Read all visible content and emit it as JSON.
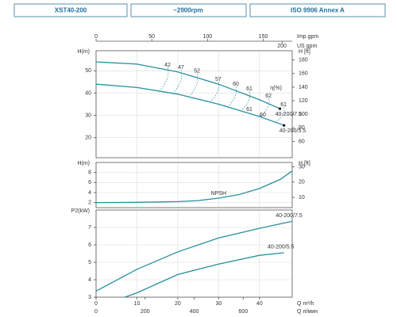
{
  "header": [
    "XST40-200",
    "~2900rpm",
    "ISO 9906   Annex A"
  ],
  "chart_data": [
    {
      "type": "line",
      "ylabel": "H(m)",
      "y2label": "H [ft]",
      "xlim": [
        0,
        48
      ],
      "ylim": [
        11,
        59
      ],
      "yticks": [
        20,
        30,
        40,
        50
      ],
      "y2lim": [
        36.1,
        193.6
      ],
      "y2ticks": [
        60,
        80,
        100,
        120,
        140,
        160,
        180
      ],
      "top_axes": [
        {
          "label": "Imp gpm",
          "xlim": [
            0,
            176
          ],
          "xticks": [
            0,
            50,
            100,
            150
          ]
        },
        {
          "label": "US gpm",
          "xlim": [
            0,
            211
          ],
          "xticks": [
            200
          ]
        }
      ],
      "series": [
        {
          "name": "40-200/7.5",
          "color": "#2a8fa0",
          "x": [
            0,
            10,
            20,
            30,
            40,
            45
          ],
          "values": [
            54,
            53,
            49.5,
            44,
            37,
            33
          ]
        },
        {
          "name": "40-200/5.5",
          "color": "#2a8fa0",
          "x": [
            0,
            10,
            20,
            30,
            40,
            46
          ],
          "values": [
            44,
            42.5,
            39.5,
            35,
            29.5,
            25.5
          ]
        }
      ],
      "efficiency": {
        "label": "η(%)",
        "label_x": 42.6,
        "label_y": 42.2,
        "x": [
          17.5,
          20.8,
          24.7,
          29.9,
          34.2,
          37.5,
          42.2,
          45.9,
          37.5,
          40.8
        ],
        "y": [
          52.6,
          51.5,
          49.8,
          46.2,
          44.1,
          41.9,
          38.7,
          34.8,
          32.7,
          30.2
        ],
        "values": [
          42,
          47,
          52,
          57,
          60,
          61,
          62,
          61,
          61,
          60
        ]
      }
    },
    {
      "type": "line",
      "ylabel": "H(m)",
      "y2label": "H [ft]",
      "xlim": [
        0,
        48
      ],
      "ylim": [
        1,
        10
      ],
      "yticks": [
        2,
        4,
        6,
        8
      ],
      "y2lim": [
        3.28,
        32.8
      ],
      "y2ticks": [
        10,
        20,
        30
      ],
      "series": [
        {
          "name": "NPSH",
          "color": "#2a8fa0",
          "x": [
            0,
            10,
            20,
            25,
            30,
            35,
            40,
            45,
            48
          ],
          "values": [
            2,
            2.05,
            2.2,
            2.4,
            2.9,
            3.6,
            4.8,
            6.6,
            8.3
          ]
        }
      ]
    },
    {
      "type": "line",
      "ylabel": "P2(kW)",
      "xlim": [
        0,
        48
      ],
      "ylim": [
        3,
        8
      ],
      "yticks": [
        3,
        4,
        5,
        6,
        7
      ],
      "series": [
        {
          "name": "40-200/7.5",
          "color": "#2a8fa0",
          "x": [
            0,
            10,
            20,
            30,
            40,
            48
          ],
          "values": [
            3.35,
            4.6,
            5.6,
            6.4,
            6.95,
            7.35
          ]
        },
        {
          "name": "40-200/5.5",
          "color": "#2a8fa0",
          "x": [
            7,
            10,
            20,
            30,
            40,
            46
          ],
          "values": [
            3,
            3.25,
            4.3,
            4.9,
            5.4,
            5.55
          ]
        }
      ],
      "bottom_axes": [
        {
          "label": "Q  m³/h",
          "xlim": [
            0,
            48
          ],
          "xticks": [
            0,
            10,
            20,
            30,
            40
          ]
        },
        {
          "label": "Q  л/мин",
          "xlim": [
            0,
            800
          ],
          "xticks": [
            0,
            200,
            400,
            600
          ]
        }
      ]
    }
  ]
}
